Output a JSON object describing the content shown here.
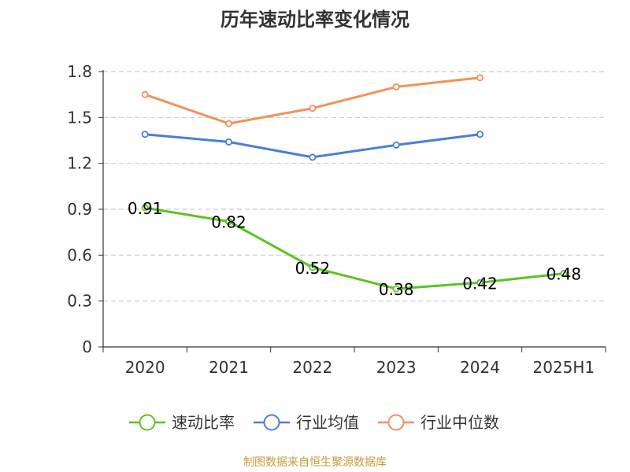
{
  "page": {
    "title": "历年速动比率变化情况",
    "source": "制图数据来自恒生聚源数据库"
  },
  "colors": {
    "grid": "#cccccc",
    "axis": "#333333",
    "text": "#333333",
    "label": "#000000",
    "source": "#c89a3a"
  },
  "chart_data": {
    "type": "line",
    "title": "历年速动比率变化情况",
    "xlabel": "",
    "ylabel": "",
    "categories": [
      "2020",
      "2021",
      "2022",
      "2023",
      "2024",
      "2025H1"
    ],
    "ylim": [
      0,
      1.8
    ],
    "yticks": [
      0,
      0.3,
      0.6,
      0.9,
      1.2,
      1.5,
      1.8
    ],
    "ytick_labels": [
      "0",
      "0.3",
      "0.6",
      "0.9",
      "1.2",
      "1.5",
      "1.8"
    ],
    "grid": true,
    "legend_position": "bottom",
    "series": [
      {
        "name": "速动比率",
        "color": "#5cc31f",
        "values": [
          0.91,
          0.82,
          0.52,
          0.38,
          0.42,
          0.48
        ],
        "labels": [
          "0.91",
          "0.82",
          "0.52",
          "0.38",
          "0.42",
          "0.48"
        ]
      },
      {
        "name": "行业均值",
        "color": "#4a7fd8",
        "values": [
          1.39,
          1.34,
          1.24,
          1.32,
          1.39,
          null
        ],
        "labels": []
      },
      {
        "name": "行业中位数",
        "color": "#f5905a",
        "values": [
          1.65,
          1.46,
          1.56,
          1.7,
          1.76,
          null
        ],
        "labels": []
      }
    ]
  }
}
